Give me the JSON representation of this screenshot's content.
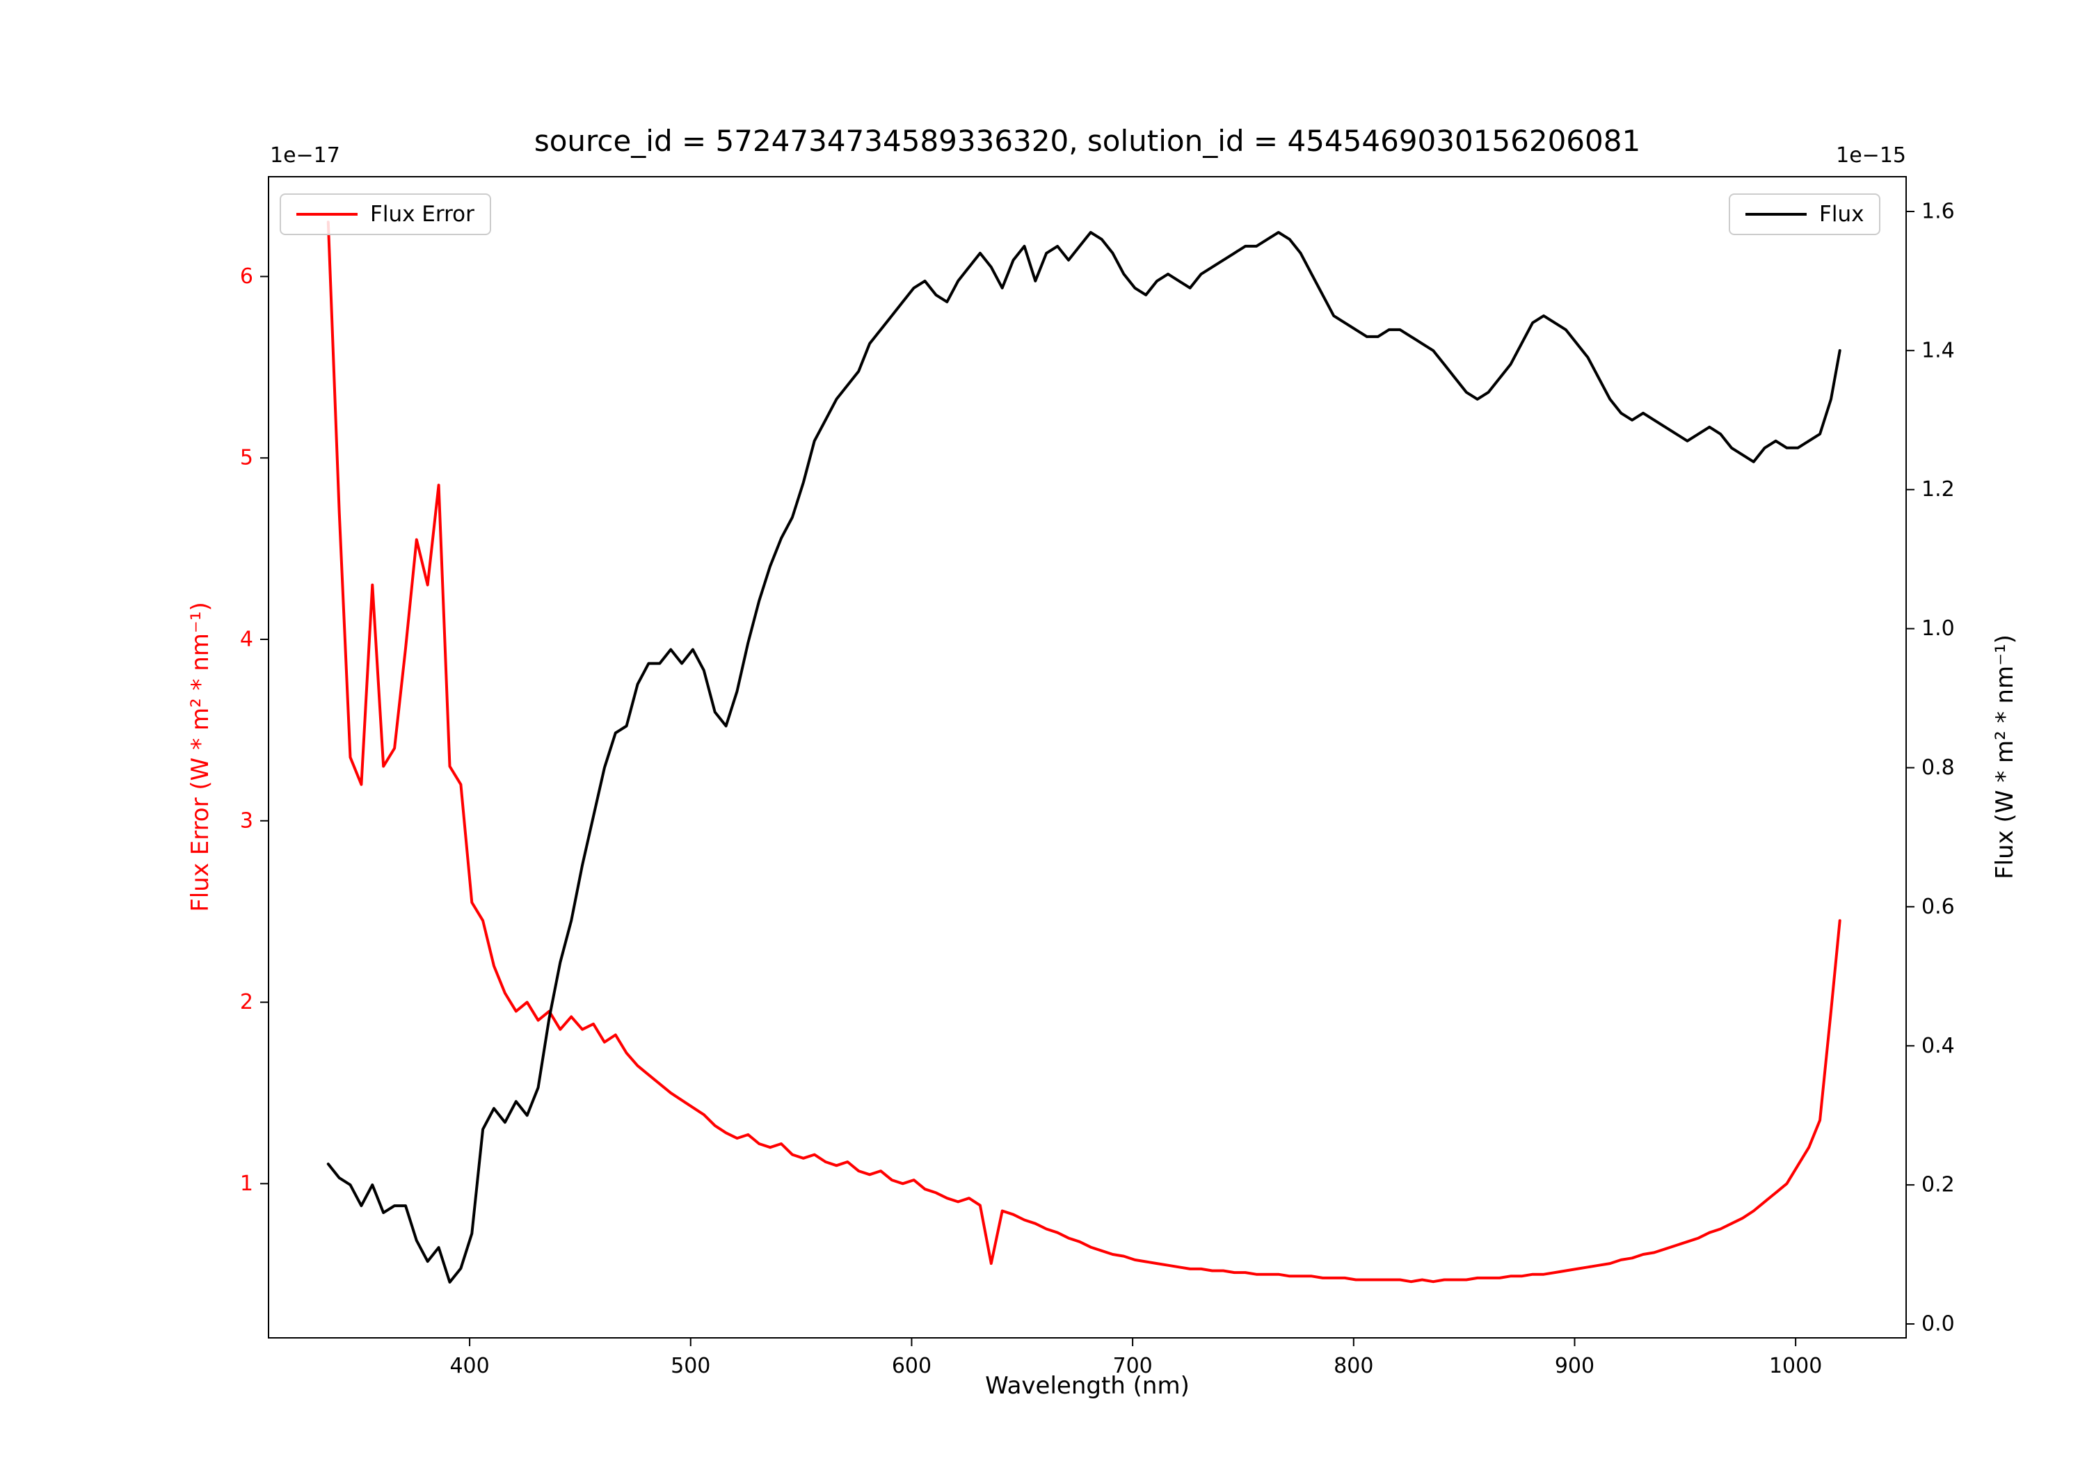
{
  "figure": {
    "title": "source_id = 5724734734589336320, solution_id = 4545469030156206081",
    "background": "#ffffff"
  },
  "axes": {
    "x": {
      "label": "Wavelength (nm)",
      "ticks": [
        {
          "v": 400,
          "label": "400"
        },
        {
          "v": 500,
          "label": "500"
        },
        {
          "v": 600,
          "label": "600"
        },
        {
          "v": 700,
          "label": "700"
        },
        {
          "v": 800,
          "label": "800"
        },
        {
          "v": 900,
          "label": "900"
        },
        {
          "v": 1000,
          "label": "1000"
        }
      ]
    },
    "y_left": {
      "label": "Flux Error (W * m² * nm⁻¹)",
      "color": "#ff0000",
      "offset_text": "1e−17",
      "ticks": [
        {
          "v": 1,
          "label": "1"
        },
        {
          "v": 2,
          "label": "2"
        },
        {
          "v": 3,
          "label": "3"
        },
        {
          "v": 4,
          "label": "4"
        },
        {
          "v": 5,
          "label": "5"
        },
        {
          "v": 6,
          "label": "6"
        }
      ]
    },
    "y_right": {
      "label": "Flux (W * m² * nm⁻¹)",
      "color": "#000000",
      "offset_text": "1e−15",
      "ticks": [
        {
          "v": 0.0,
          "label": "0.0"
        },
        {
          "v": 0.2,
          "label": "0.2"
        },
        {
          "v": 0.4,
          "label": "0.4"
        },
        {
          "v": 0.6,
          "label": "0.6"
        },
        {
          "v": 0.8,
          "label": "0.8"
        },
        {
          "v": 1.0,
          "label": "1.0"
        },
        {
          "v": 1.2,
          "label": "1.2"
        },
        {
          "v": 1.4,
          "label": "1.4"
        },
        {
          "v": 1.6,
          "label": "1.6"
        }
      ]
    }
  },
  "legends": {
    "left": {
      "label": "Flux Error",
      "color": "#ff0000"
    },
    "right": {
      "label": "Flux",
      "color": "#000000"
    }
  },
  "chart_data": {
    "type": "line",
    "title": "source_id = 5724734734589336320, solution_id = 4545469030156206081",
    "xlabel": "Wavelength (nm)",
    "ylabel_left": "Flux Error (W * m² * nm⁻¹)",
    "ylabel_right": "Flux (W * m² * nm⁻¹)",
    "xlim": [
      309,
      1050
    ],
    "ylim_left": [
      0.15,
      6.55
    ],
    "ylim_right": [
      -0.02,
      1.65
    ],
    "y_left_scale": "1e-17",
    "y_right_scale": "1e-15",
    "grid": false,
    "legend_position": {
      "flux_error": "upper left",
      "flux": "upper right"
    },
    "series": [
      {
        "name": "Flux Error",
        "axis": "left",
        "color": "#ff0000",
        "points": [
          [
            336,
            6.3
          ],
          [
            341,
            4.7
          ],
          [
            346,
            3.35
          ],
          [
            351,
            3.2
          ],
          [
            356,
            4.3
          ],
          [
            361,
            3.3
          ],
          [
            366,
            3.4
          ],
          [
            371,
            3.95
          ],
          [
            376,
            4.55
          ],
          [
            381,
            4.3
          ],
          [
            386,
            4.85
          ],
          [
            391,
            3.3
          ],
          [
            396,
            3.2
          ],
          [
            401,
            2.55
          ],
          [
            406,
            2.45
          ],
          [
            411,
            2.2
          ],
          [
            416,
            2.05
          ],
          [
            421,
            1.95
          ],
          [
            426,
            2.0
          ],
          [
            431,
            1.9
          ],
          [
            436,
            1.95
          ],
          [
            441,
            1.85
          ],
          [
            446,
            1.92
          ],
          [
            451,
            1.85
          ],
          [
            456,
            1.88
          ],
          [
            461,
            1.78
          ],
          [
            466,
            1.82
          ],
          [
            471,
            1.72
          ],
          [
            476,
            1.65
          ],
          [
            481,
            1.6
          ],
          [
            486,
            1.55
          ],
          [
            491,
            1.5
          ],
          [
            496,
            1.46
          ],
          [
            501,
            1.42
          ],
          [
            506,
            1.38
          ],
          [
            511,
            1.32
          ],
          [
            516,
            1.28
          ],
          [
            521,
            1.25
          ],
          [
            526,
            1.27
          ],
          [
            531,
            1.22
          ],
          [
            536,
            1.2
          ],
          [
            541,
            1.22
          ],
          [
            546,
            1.16
          ],
          [
            551,
            1.14
          ],
          [
            556,
            1.16
          ],
          [
            561,
            1.12
          ],
          [
            566,
            1.1
          ],
          [
            571,
            1.12
          ],
          [
            576,
            1.07
          ],
          [
            581,
            1.05
          ],
          [
            586,
            1.07
          ],
          [
            591,
            1.02
          ],
          [
            596,
            1.0
          ],
          [
            601,
            1.02
          ],
          [
            606,
            0.97
          ],
          [
            611,
            0.95
          ],
          [
            616,
            0.92
          ],
          [
            621,
            0.9
          ],
          [
            626,
            0.92
          ],
          [
            631,
            0.88
          ],
          [
            636,
            0.56
          ],
          [
            641,
            0.85
          ],
          [
            646,
            0.83
          ],
          [
            651,
            0.8
          ],
          [
            656,
            0.78
          ],
          [
            661,
            0.75
          ],
          [
            666,
            0.73
          ],
          [
            671,
            0.7
          ],
          [
            676,
            0.68
          ],
          [
            681,
            0.65
          ],
          [
            686,
            0.63
          ],
          [
            691,
            0.61
          ],
          [
            696,
            0.6
          ],
          [
            701,
            0.58
          ],
          [
            706,
            0.57
          ],
          [
            711,
            0.56
          ],
          [
            716,
            0.55
          ],
          [
            721,
            0.54
          ],
          [
            726,
            0.53
          ],
          [
            731,
            0.53
          ],
          [
            736,
            0.52
          ],
          [
            741,
            0.52
          ],
          [
            746,
            0.51
          ],
          [
            751,
            0.51
          ],
          [
            756,
            0.5
          ],
          [
            761,
            0.5
          ],
          [
            766,
            0.5
          ],
          [
            771,
            0.49
          ],
          [
            776,
            0.49
          ],
          [
            781,
            0.49
          ],
          [
            786,
            0.48
          ],
          [
            791,
            0.48
          ],
          [
            796,
            0.48
          ],
          [
            801,
            0.47
          ],
          [
            806,
            0.47
          ],
          [
            811,
            0.47
          ],
          [
            816,
            0.47
          ],
          [
            821,
            0.47
          ],
          [
            826,
            0.46
          ],
          [
            831,
            0.47
          ],
          [
            836,
            0.46
          ],
          [
            841,
            0.47
          ],
          [
            846,
            0.47
          ],
          [
            851,
            0.47
          ],
          [
            856,
            0.48
          ],
          [
            861,
            0.48
          ],
          [
            866,
            0.48
          ],
          [
            871,
            0.49
          ],
          [
            876,
            0.49
          ],
          [
            881,
            0.5
          ],
          [
            886,
            0.5
          ],
          [
            891,
            0.51
          ],
          [
            896,
            0.52
          ],
          [
            901,
            0.53
          ],
          [
            906,
            0.54
          ],
          [
            911,
            0.55
          ],
          [
            916,
            0.56
          ],
          [
            921,
            0.58
          ],
          [
            926,
            0.59
          ],
          [
            931,
            0.61
          ],
          [
            936,
            0.62
          ],
          [
            941,
            0.64
          ],
          [
            946,
            0.66
          ],
          [
            951,
            0.68
          ],
          [
            956,
            0.7
          ],
          [
            961,
            0.73
          ],
          [
            966,
            0.75
          ],
          [
            971,
            0.78
          ],
          [
            976,
            0.81
          ],
          [
            981,
            0.85
          ],
          [
            986,
            0.9
          ],
          [
            991,
            0.95
          ],
          [
            996,
            1.0
          ],
          [
            1001,
            1.1
          ],
          [
            1006,
            1.2
          ],
          [
            1011,
            1.35
          ],
          [
            1016,
            1.95
          ],
          [
            1020,
            2.45
          ]
        ]
      },
      {
        "name": "Flux",
        "axis": "right",
        "color": "#000000",
        "points": [
          [
            336,
            0.23
          ],
          [
            341,
            0.21
          ],
          [
            346,
            0.2
          ],
          [
            351,
            0.17
          ],
          [
            356,
            0.2
          ],
          [
            361,
            0.16
          ],
          [
            366,
            0.17
          ],
          [
            371,
            0.17
          ],
          [
            376,
            0.12
          ],
          [
            381,
            0.09
          ],
          [
            386,
            0.11
          ],
          [
            391,
            0.06
          ],
          [
            396,
            0.08
          ],
          [
            401,
            0.13
          ],
          [
            406,
            0.28
          ],
          [
            411,
            0.31
          ],
          [
            416,
            0.29
          ],
          [
            421,
            0.32
          ],
          [
            426,
            0.3
          ],
          [
            431,
            0.34
          ],
          [
            436,
            0.44
          ],
          [
            441,
            0.52
          ],
          [
            446,
            0.58
          ],
          [
            451,
            0.66
          ],
          [
            456,
            0.73
          ],
          [
            461,
            0.8
          ],
          [
            466,
            0.85
          ],
          [
            471,
            0.86
          ],
          [
            476,
            0.92
          ],
          [
            481,
            0.95
          ],
          [
            486,
            0.95
          ],
          [
            491,
            0.97
          ],
          [
            496,
            0.95
          ],
          [
            501,
            0.97
          ],
          [
            506,
            0.94
          ],
          [
            511,
            0.88
          ],
          [
            516,
            0.86
          ],
          [
            521,
            0.91
          ],
          [
            526,
            0.98
          ],
          [
            531,
            1.04
          ],
          [
            536,
            1.09
          ],
          [
            541,
            1.13
          ],
          [
            546,
            1.16
          ],
          [
            551,
            1.21
          ],
          [
            556,
            1.27
          ],
          [
            561,
            1.3
          ],
          [
            566,
            1.33
          ],
          [
            571,
            1.35
          ],
          [
            576,
            1.37
          ],
          [
            581,
            1.41
          ],
          [
            586,
            1.43
          ],
          [
            591,
            1.45
          ],
          [
            596,
            1.47
          ],
          [
            601,
            1.49
          ],
          [
            606,
            1.5
          ],
          [
            611,
            1.48
          ],
          [
            616,
            1.47
          ],
          [
            621,
            1.5
          ],
          [
            626,
            1.52
          ],
          [
            631,
            1.54
          ],
          [
            636,
            1.52
          ],
          [
            641,
            1.49
          ],
          [
            646,
            1.53
          ],
          [
            651,
            1.55
          ],
          [
            656,
            1.5
          ],
          [
            661,
            1.54
          ],
          [
            666,
            1.55
          ],
          [
            671,
            1.53
          ],
          [
            676,
            1.55
          ],
          [
            681,
            1.57
          ],
          [
            686,
            1.56
          ],
          [
            691,
            1.54
          ],
          [
            696,
            1.51
          ],
          [
            701,
            1.49
          ],
          [
            706,
            1.48
          ],
          [
            711,
            1.5
          ],
          [
            716,
            1.51
          ],
          [
            721,
            1.5
          ],
          [
            726,
            1.49
          ],
          [
            731,
            1.51
          ],
          [
            736,
            1.52
          ],
          [
            741,
            1.53
          ],
          [
            746,
            1.54
          ],
          [
            751,
            1.55
          ],
          [
            756,
            1.55
          ],
          [
            761,
            1.56
          ],
          [
            766,
            1.57
          ],
          [
            771,
            1.56
          ],
          [
            776,
            1.54
          ],
          [
            781,
            1.51
          ],
          [
            786,
            1.48
          ],
          [
            791,
            1.45
          ],
          [
            796,
            1.44
          ],
          [
            801,
            1.43
          ],
          [
            806,
            1.42
          ],
          [
            811,
            1.42
          ],
          [
            816,
            1.43
          ],
          [
            821,
            1.43
          ],
          [
            826,
            1.42
          ],
          [
            831,
            1.41
          ],
          [
            836,
            1.4
          ],
          [
            841,
            1.38
          ],
          [
            846,
            1.36
          ],
          [
            851,
            1.34
          ],
          [
            856,
            1.33
          ],
          [
            861,
            1.34
          ],
          [
            866,
            1.36
          ],
          [
            871,
            1.38
          ],
          [
            876,
            1.41
          ],
          [
            881,
            1.44
          ],
          [
            886,
            1.45
          ],
          [
            891,
            1.44
          ],
          [
            896,
            1.43
          ],
          [
            901,
            1.41
          ],
          [
            906,
            1.39
          ],
          [
            911,
            1.36
          ],
          [
            916,
            1.33
          ],
          [
            921,
            1.31
          ],
          [
            926,
            1.3
          ],
          [
            931,
            1.31
          ],
          [
            936,
            1.3
          ],
          [
            941,
            1.29
          ],
          [
            946,
            1.28
          ],
          [
            951,
            1.27
          ],
          [
            956,
            1.28
          ],
          [
            961,
            1.29
          ],
          [
            966,
            1.28
          ],
          [
            971,
            1.26
          ],
          [
            976,
            1.25
          ],
          [
            981,
            1.24
          ],
          [
            986,
            1.26
          ],
          [
            991,
            1.27
          ],
          [
            996,
            1.26
          ],
          [
            1001,
            1.26
          ],
          [
            1006,
            1.27
          ],
          [
            1011,
            1.28
          ],
          [
            1016,
            1.33
          ],
          [
            1020,
            1.4
          ]
        ]
      }
    ]
  }
}
